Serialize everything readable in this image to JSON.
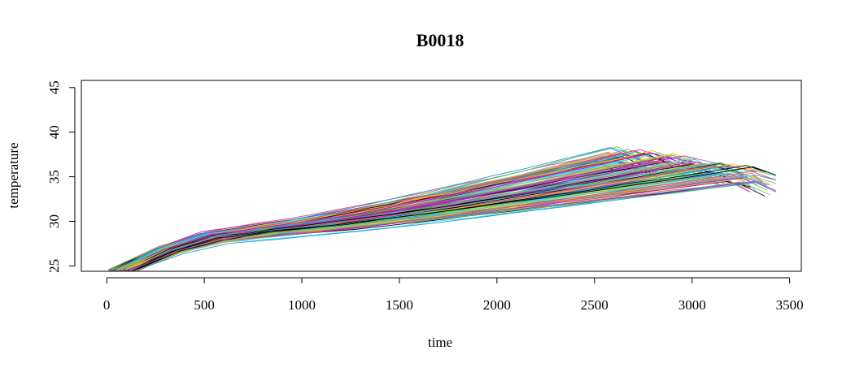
{
  "chart_data": {
    "type": "line",
    "title": "B0018",
    "xlabel": "time",
    "ylabel": "temperature",
    "xlim": [
      -130,
      3560
    ],
    "ylim": [
      24.4,
      45.8
    ],
    "x_ticks": [
      0,
      500,
      1000,
      1500,
      2000,
      2500,
      3000,
      3500
    ],
    "y_ticks": [
      25,
      30,
      35,
      40,
      45
    ],
    "grid": false,
    "legend": "none",
    "series_count": 132,
    "series_colors": [
      "#000000",
      "#DF536B",
      "#61D04F",
      "#2297E6",
      "#28E2E5",
      "#CD0BBC",
      "#F5C710",
      "#9E9E9E"
    ],
    "series_profile": {
      "start_x": [
        0,
        170
      ],
      "start_y": [
        24.4,
        24.6
      ],
      "knee_x": [
        480,
        640
      ],
      "knee_y": [
        27.5,
        28.9
      ],
      "flat_end_x": [
        760,
        900
      ],
      "flat_end_y": [
        28.3,
        30.1
      ],
      "peak_x": [
        2500,
        3380
      ],
      "peak_y": [
        33.8,
        38.8
      ],
      "end_x": [
        2700,
        3430
      ],
      "end_y": [
        33.3,
        37.3
      ]
    }
  }
}
